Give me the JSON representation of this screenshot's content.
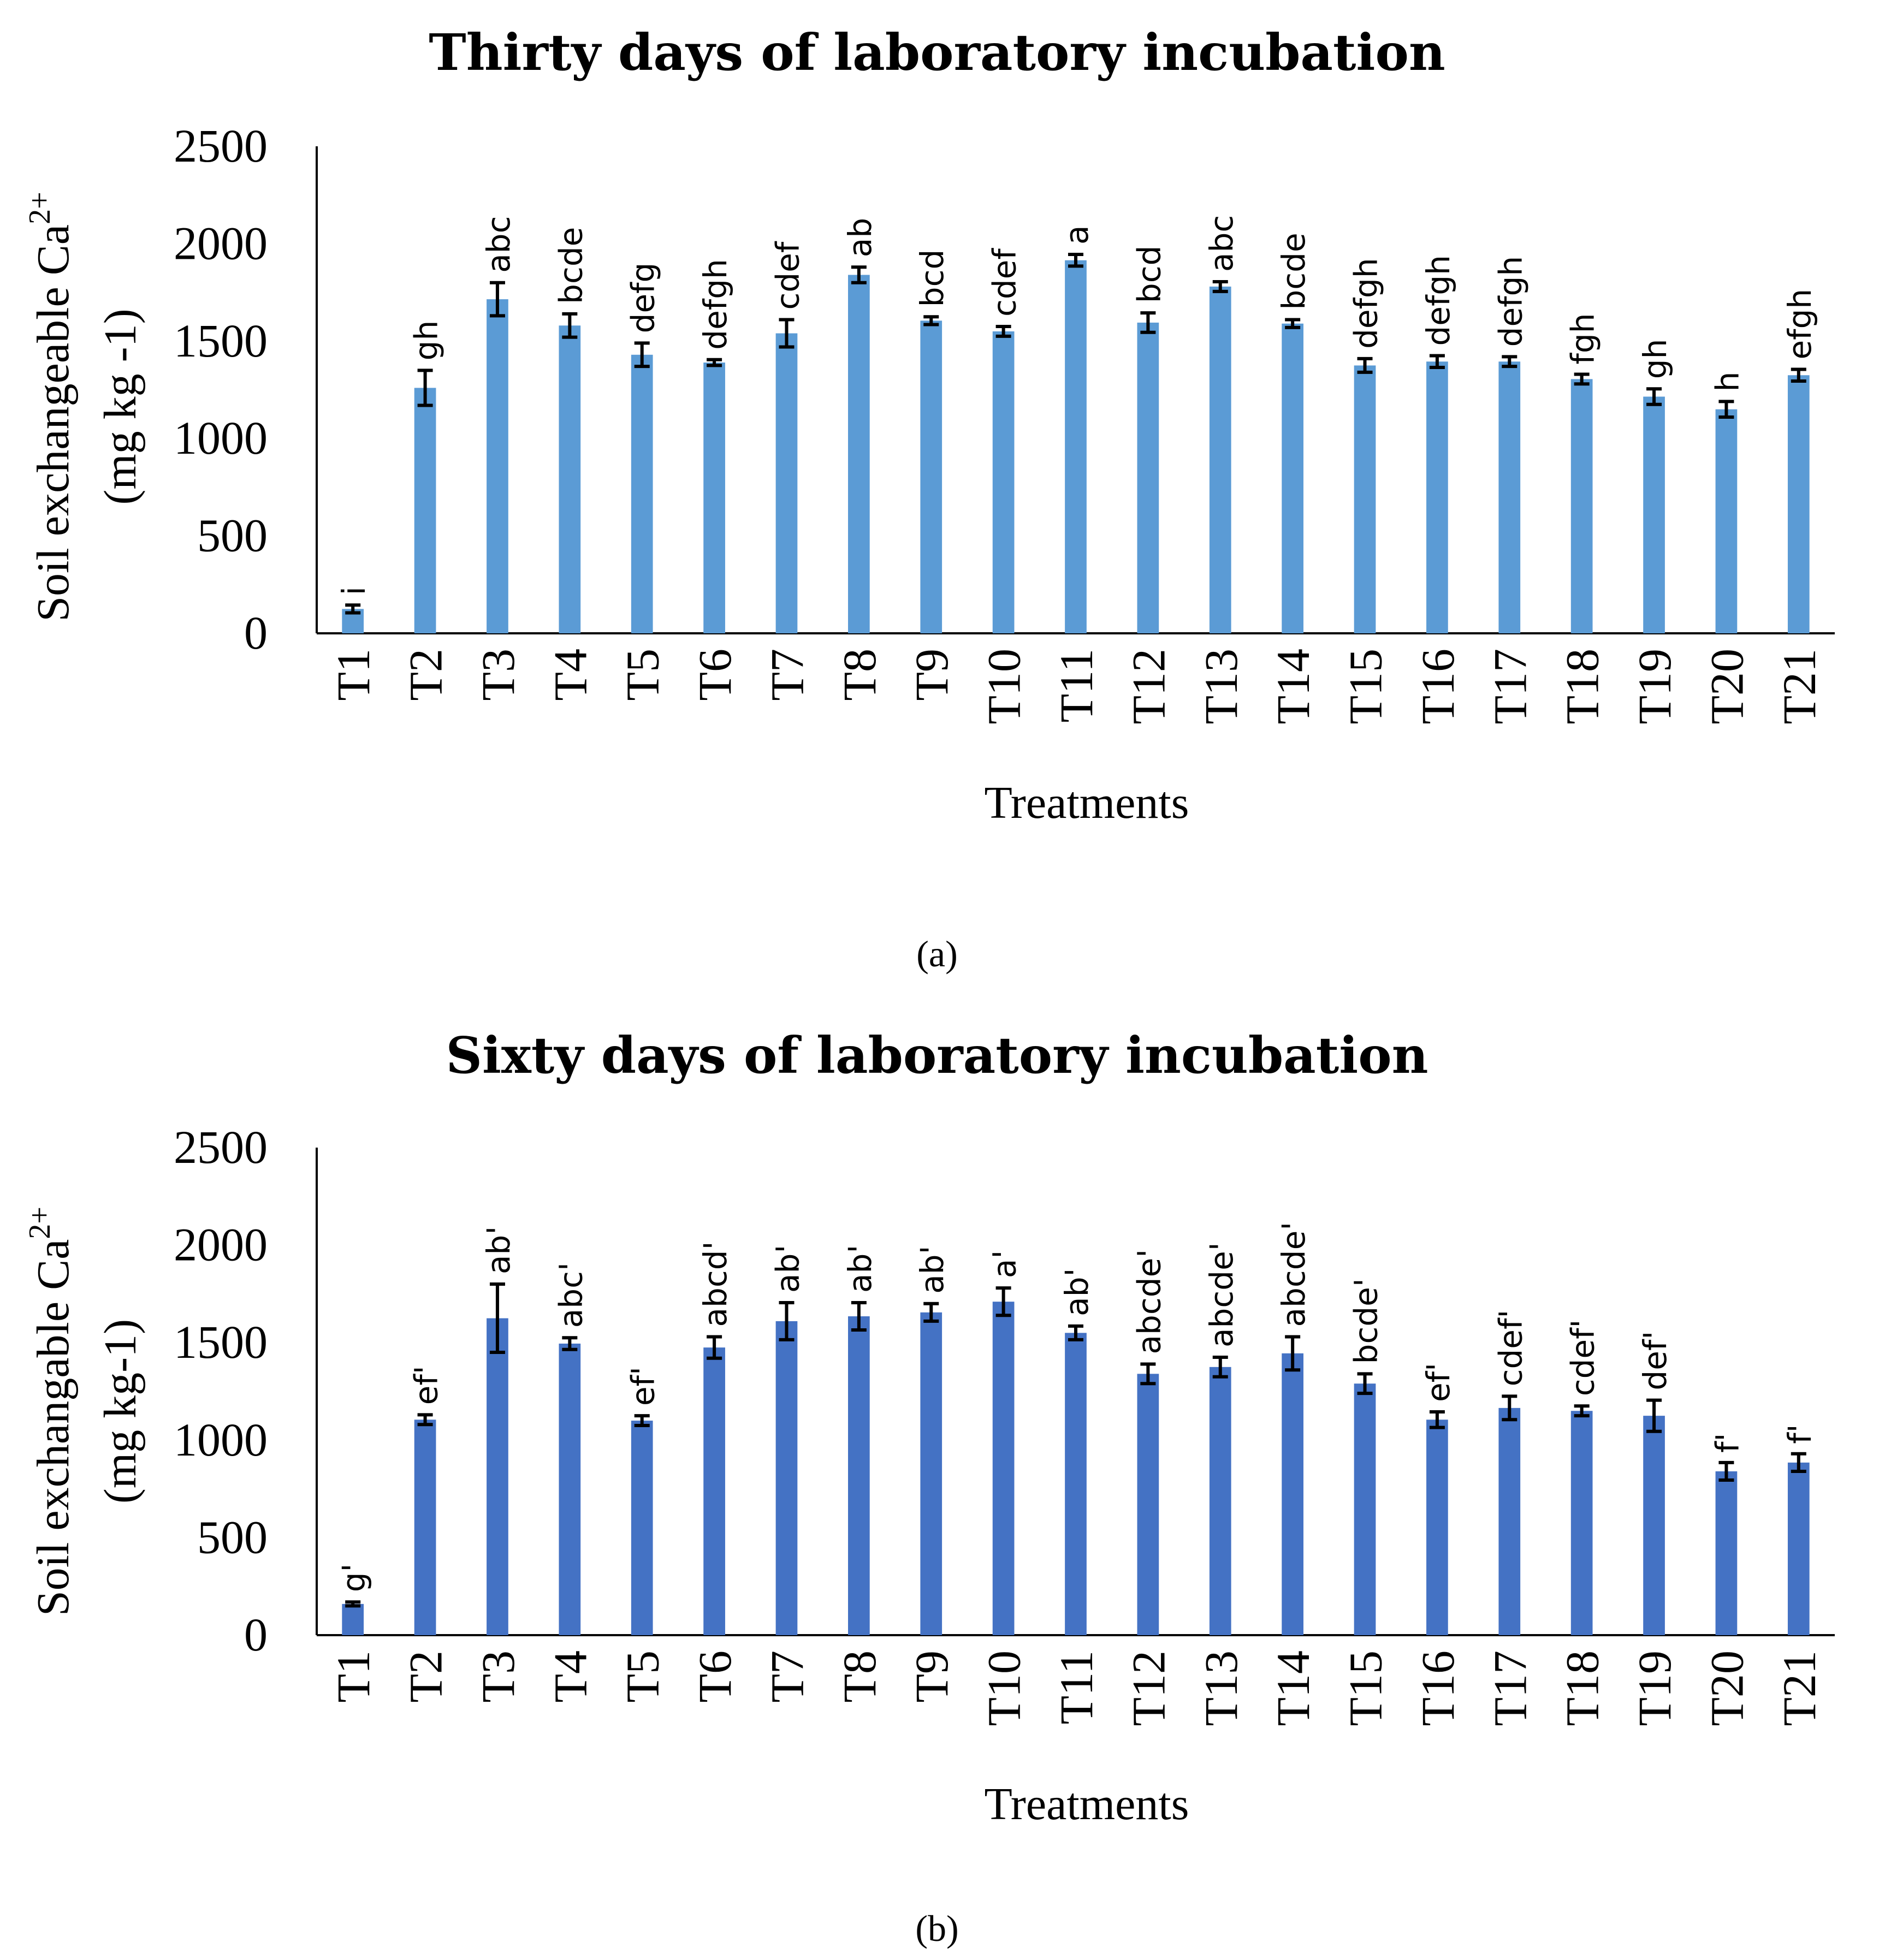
{
  "figure": {
    "panel_labels": [
      "(a)",
      "(b)"
    ]
  },
  "chart_data": [
    {
      "type": "bar",
      "title": "Thirty days of laboratory incubation",
      "xlabel": "Treatments",
      "ylabel_line1": "Soil exchangeable Ca",
      "ylabel_sup": "2+",
      "ylabel_line2": "(mg kg -1)",
      "ylim": [
        0,
        2500
      ],
      "yticks": [
        0,
        500,
        1000,
        1500,
        2000,
        2500
      ],
      "grid": false,
      "bar_color": "#5b9bd5",
      "categories": [
        "T1",
        "T2",
        "T3",
        "T4",
        "T5",
        "T6",
        "T7",
        "T8",
        "T9",
        "T10",
        "T11",
        "T12",
        "T13",
        "T14",
        "T15",
        "T16",
        "T17",
        "T18",
        "T19",
        "T20",
        "T21"
      ],
      "values": [
        125,
        1260,
        1715,
        1580,
        1430,
        1390,
        1540,
        1840,
        1605,
        1550,
        1915,
        1595,
        1780,
        1590,
        1375,
        1395,
        1395,
        1305,
        1215,
        1150,
        1325
      ],
      "errors": [
        20,
        90,
        85,
        60,
        60,
        15,
        70,
        40,
        20,
        25,
        30,
        50,
        25,
        20,
        35,
        30,
        25,
        25,
        40,
        40,
        30
      ],
      "significance": [
        "i",
        "gh",
        "abc",
        "bcde",
        "defg",
        "defgh",
        "cdef",
        "ab",
        "bcd",
        "cdef",
        "a",
        "bcd",
        "abc",
        "bcde",
        "defgh",
        "defgh",
        "defgh",
        "fgh",
        "gh",
        "h",
        "efgh"
      ]
    },
    {
      "type": "bar",
      "title": "Sixty days of laboratory incubation",
      "xlabel": "Treatments",
      "ylabel_line1": "Soil exchangable Ca",
      "ylabel_sup": "2+",
      "ylabel_line2": "(mg kg-1)",
      "ylim": [
        0,
        2500
      ],
      "yticks": [
        0,
        500,
        1000,
        1500,
        2000,
        2500
      ],
      "grid": false,
      "bar_color": "#4472c4",
      "categories": [
        "T1",
        "T2",
        "T3",
        "T4",
        "T5",
        "T6",
        "T7",
        "T8",
        "T9",
        "T10",
        "T11",
        "T12",
        "T13",
        "T14",
        "T15",
        "T16",
        "T17",
        "T18",
        "T19",
        "T20",
        "T21"
      ],
      "values": [
        160,
        1105,
        1625,
        1495,
        1100,
        1475,
        1610,
        1635,
        1655,
        1710,
        1550,
        1340,
        1375,
        1445,
        1290,
        1105,
        1165,
        1150,
        1125,
        840,
        885
      ],
      "errors": [
        10,
        25,
        175,
        30,
        25,
        55,
        95,
        70,
        45,
        70,
        35,
        50,
        50,
        85,
        50,
        40,
        60,
        25,
        80,
        45,
        45
      ],
      "significance": [
        "g'",
        "ef'",
        "ab'",
        "abc'",
        "ef'",
        "abcd'",
        "ab'",
        "ab'",
        "ab'",
        "a'",
        "ab'",
        "abcde'",
        "abcde'",
        "abcde'",
        "bcde'",
        "ef'",
        "cdef'",
        "cdef'",
        "def'",
        "f'",
        "f'"
      ]
    }
  ]
}
